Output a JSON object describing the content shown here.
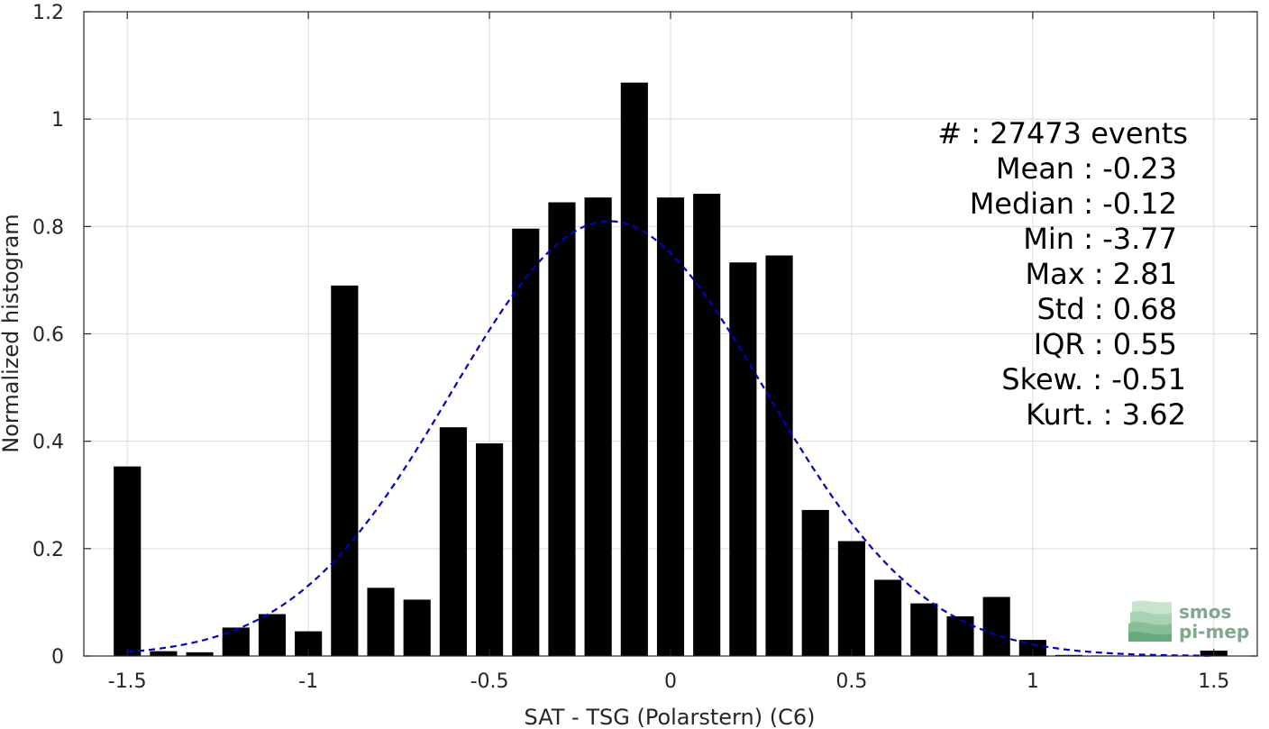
{
  "chart_data": {
    "type": "bar",
    "xlabel": "SAT - TSG (Polarstern) (C6)",
    "ylabel": "Normalized histogram",
    "xlim": [
      -1.62,
      1.62
    ],
    "ylim": [
      0,
      1.2
    ],
    "xticks": [
      -1.5,
      -1,
      -0.5,
      0,
      0.5,
      1,
      1.5
    ],
    "xtick_labels": [
      "-1.5",
      "-1",
      "-0.5",
      "0",
      "0.5",
      "1",
      "1.5"
    ],
    "yticks": [
      0,
      0.2,
      0.4,
      0.6,
      0.8,
      1,
      1.2
    ],
    "ytick_labels": [
      "0",
      "0.2",
      "0.4",
      "0.6",
      "0.8",
      "1",
      "1.2"
    ],
    "grid": true,
    "bar_width": 0.075,
    "bar_color": "#000000",
    "bins": [
      {
        "x": -1.5,
        "y": 0.353
      },
      {
        "x": -1.4,
        "y": 0.009
      },
      {
        "x": -1.3,
        "y": 0.007
      },
      {
        "x": -1.2,
        "y": 0.053
      },
      {
        "x": -1.1,
        "y": 0.078
      },
      {
        "x": -1.0,
        "y": 0.046
      },
      {
        "x": -0.9,
        "y": 0.69
      },
      {
        "x": -0.8,
        "y": 0.127
      },
      {
        "x": -0.7,
        "y": 0.105
      },
      {
        "x": -0.6,
        "y": 0.426
      },
      {
        "x": -0.5,
        "y": 0.396
      },
      {
        "x": -0.4,
        "y": 0.796
      },
      {
        "x": -0.3,
        "y": 0.845
      },
      {
        "x": -0.2,
        "y": 0.854
      },
      {
        "x": -0.1,
        "y": 1.068
      },
      {
        "x": 0.0,
        "y": 0.854
      },
      {
        "x": 0.1,
        "y": 0.861
      },
      {
        "x": 0.2,
        "y": 0.733
      },
      {
        "x": 0.3,
        "y": 0.746
      },
      {
        "x": 0.4,
        "y": 0.272
      },
      {
        "x": 0.5,
        "y": 0.214
      },
      {
        "x": 0.6,
        "y": 0.142
      },
      {
        "x": 0.7,
        "y": 0.098
      },
      {
        "x": 0.8,
        "y": 0.074
      },
      {
        "x": 0.9,
        "y": 0.11
      },
      {
        "x": 1.0,
        "y": 0.03
      },
      {
        "x": 1.1,
        "y": 0.002
      },
      {
        "x": 1.2,
        "y": 0.001
      },
      {
        "x": 1.3,
        "y": 0.001
      },
      {
        "x": 1.4,
        "y": 0.0
      },
      {
        "x": 1.5,
        "y": 0.01
      }
    ],
    "fit": {
      "type": "gaussian",
      "mean": -0.17,
      "std": 0.435,
      "peak": 0.81,
      "x_range": [
        -1.5,
        1.5
      ],
      "color": "#0000cc",
      "style": "dashed"
    },
    "stats": [
      "#  : 27473 events",
      "Mean : -0.23",
      "Median : -0.12",
      "Min : -3.77",
      "Max : 2.81",
      "Std : 0.68",
      "IQR : 0.55",
      "Skew. : -0.51",
      "Kurt. : 3.62"
    ],
    "logo_lines": [
      "smos",
      "pi-mep"
    ]
  }
}
